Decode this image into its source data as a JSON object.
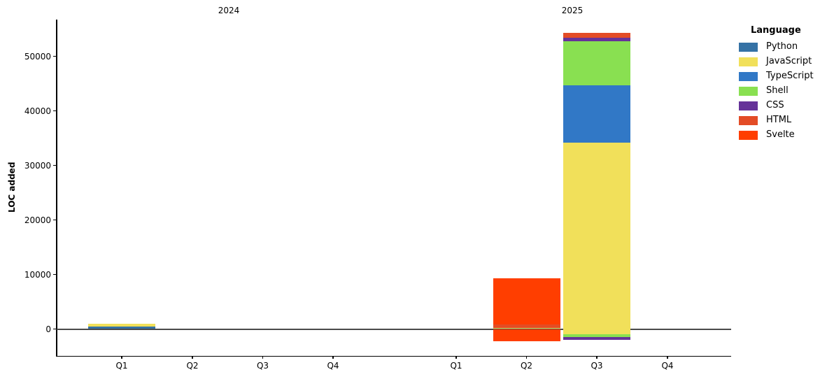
{
  "figure": {
    "ylabel": "LOC added",
    "facet_titles": [
      "2024",
      "2025"
    ]
  },
  "chart_data": {
    "type": "bar",
    "stacked": true,
    "orientation": "vertical",
    "ylabel": "LOC added",
    "xlabel": "",
    "grid": false,
    "zero_line": true,
    "ylim": [
      -4900,
      56700
    ],
    "yticks": [
      "0",
      "10000",
      "20000",
      "30000",
      "40000",
      "50000"
    ],
    "ytick_values": [
      0,
      10000,
      20000,
      30000,
      40000,
      50000
    ],
    "legend": {
      "title": "Language",
      "position": "upper right",
      "entries": [
        {
          "label": "Python",
          "color": "#3572A5"
        },
        {
          "label": "JavaScript",
          "color": "#f1e05a"
        },
        {
          "label": "TypeScript",
          "color": "#3178c6"
        },
        {
          "label": "Shell",
          "color": "#89e051"
        },
        {
          "label": "CSS",
          "color": "#663399"
        },
        {
          "label": "HTML",
          "color": "#e34c26"
        },
        {
          "label": "Svelte",
          "color": "#ff3e00"
        }
      ]
    },
    "facets": [
      {
        "title": "2024",
        "categories": [
          "Q1",
          "Q2",
          "Q3",
          "Q4"
        ],
        "bars": [
          [
            {
              "language": "Python",
              "from": 0,
              "to": 400
            },
            {
              "language": "JavaScript",
              "from": 400,
              "to": 900
            }
          ],
          [],
          [],
          []
        ]
      },
      {
        "title": "2025",
        "categories": [
          "Q1",
          "Q2",
          "Q3",
          "Q4"
        ],
        "bars": [
          [],
          [
            {
              "language": "Svelte",
              "from": -2200,
              "to": 0
            },
            {
              "language": "JavaScript",
              "from": 0,
              "to": 200
            },
            {
              "language": "HTML",
              "from": 200,
              "to": 800
            },
            {
              "language": "Svelte",
              "from": 800,
              "to": 9300
            }
          ],
          [
            {
              "language": "CSS",
              "from": -2000,
              "to": -1500
            },
            {
              "language": "Shell",
              "from": -1500,
              "to": -1000
            },
            {
              "language": "JavaScript",
              "from": -1000,
              "to": 34200
            },
            {
              "language": "TypeScript",
              "from": 34200,
              "to": 44700
            },
            {
              "language": "Shell",
              "from": 44700,
              "to": 52800
            },
            {
              "language": "CSS",
              "from": 52800,
              "to": 53400
            },
            {
              "language": "HTML",
              "from": 53400,
              "to": 54300
            }
          ],
          []
        ]
      }
    ]
  }
}
